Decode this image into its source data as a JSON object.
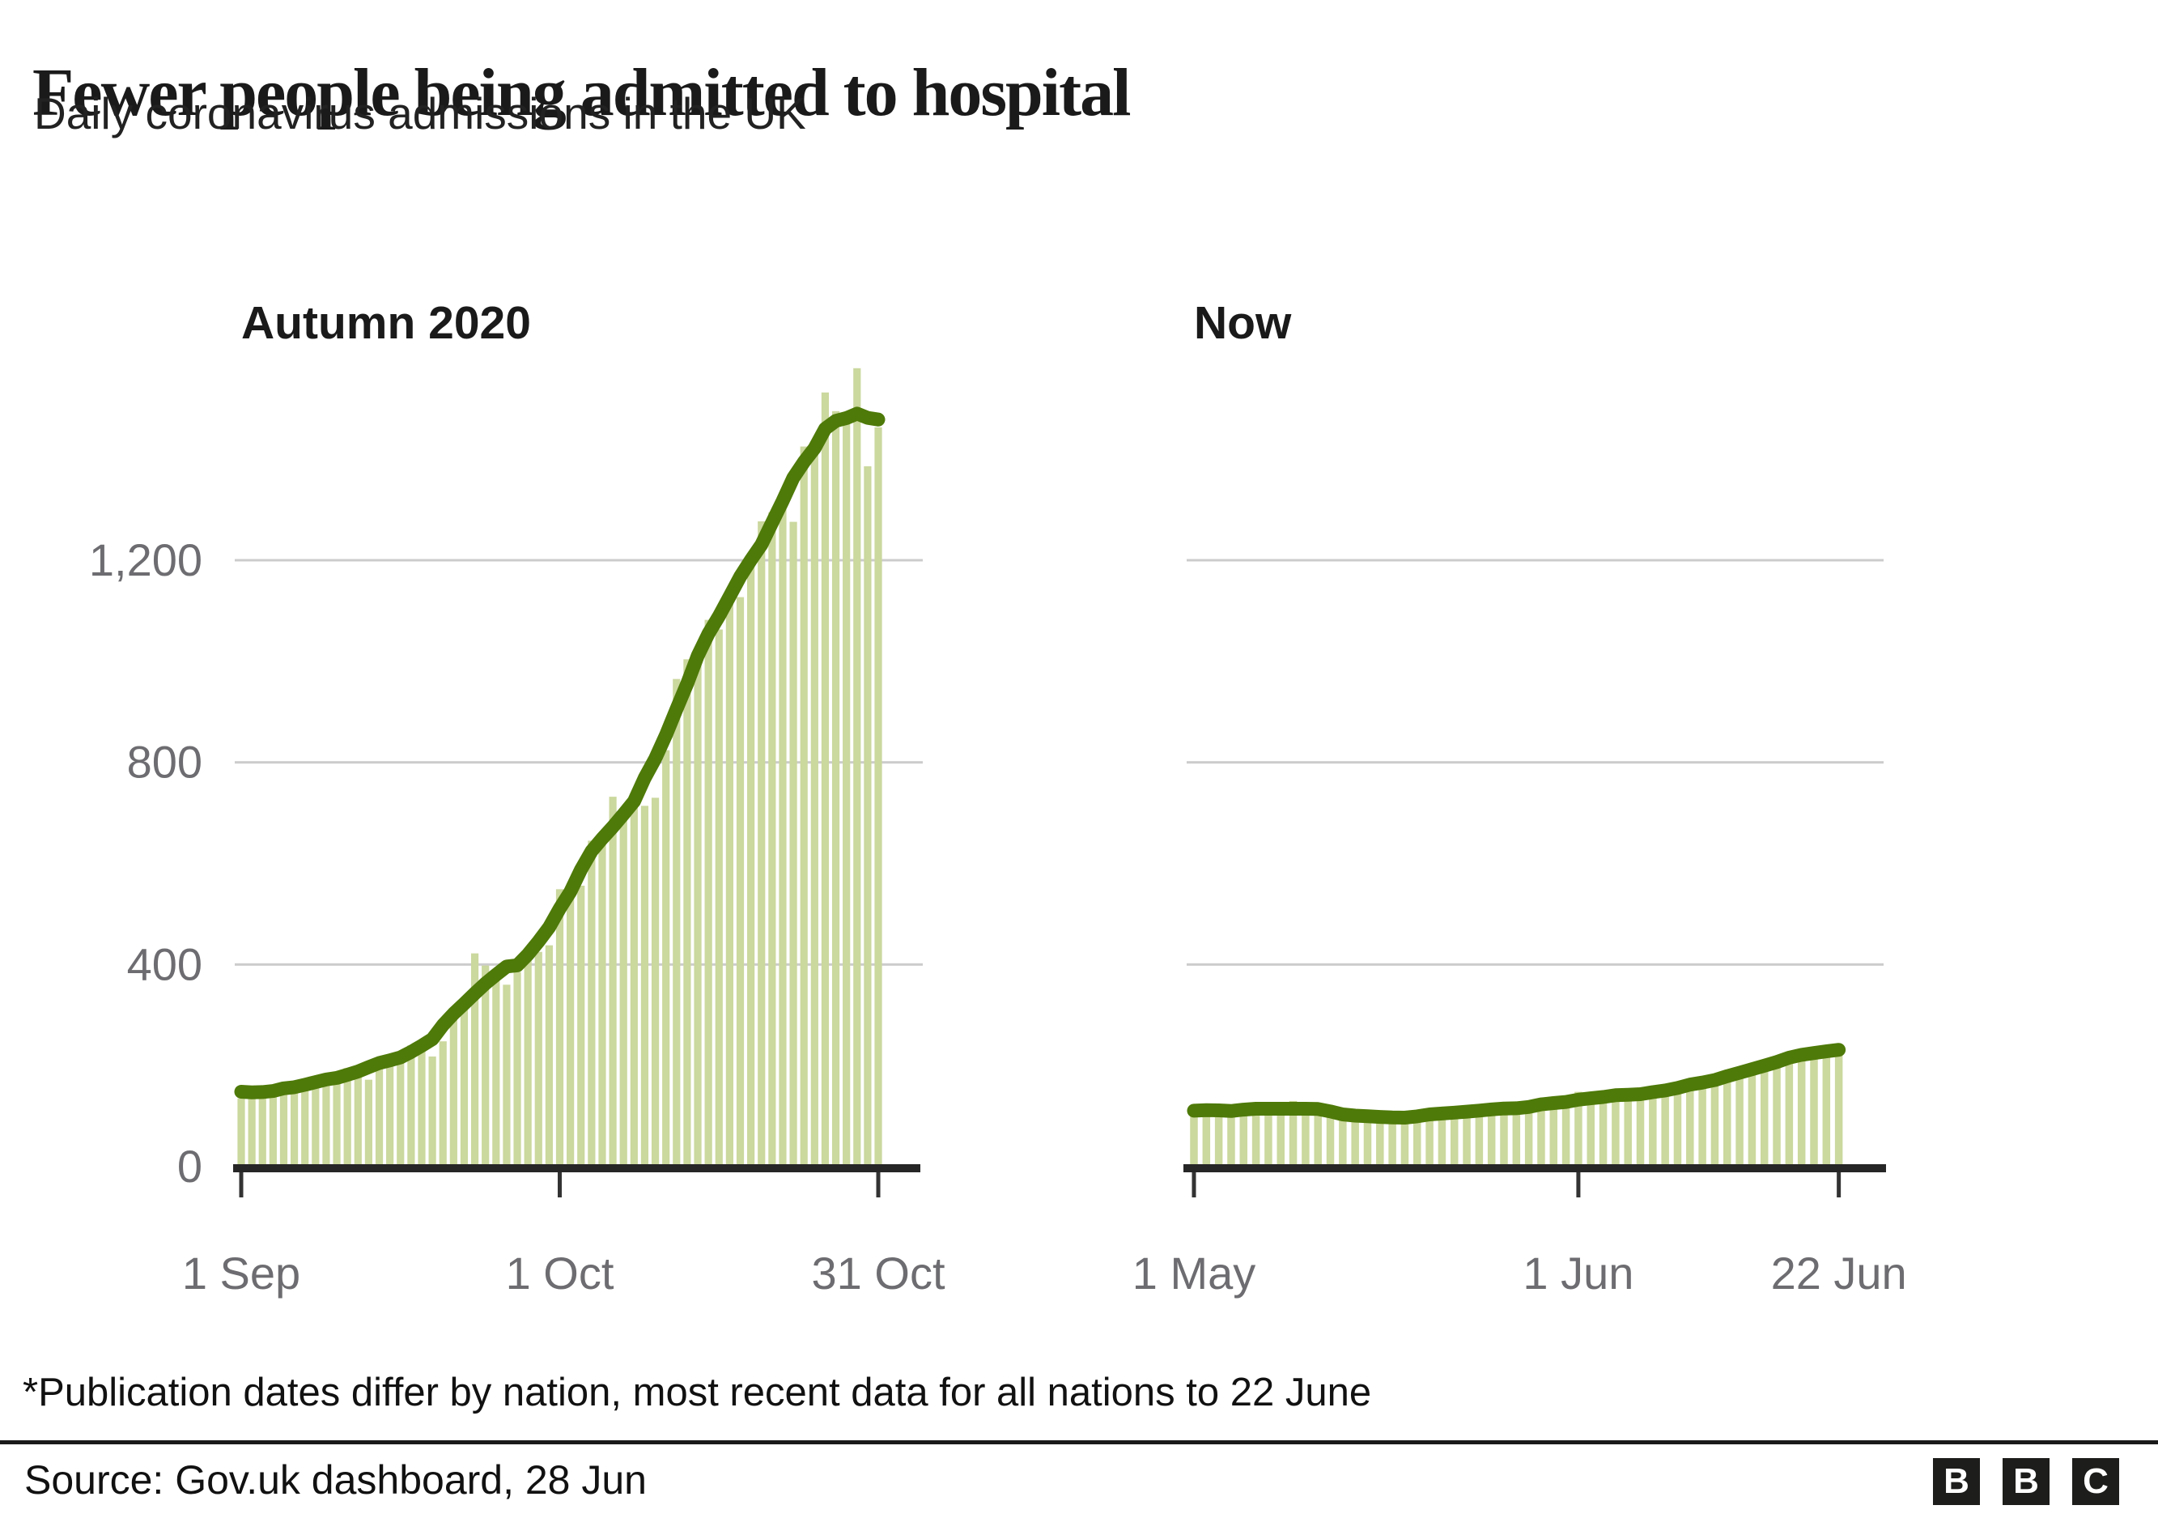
{
  "header": {
    "title": "Fewer people being admitted to hospital",
    "subtitle": "Daily coronavirus admissions in the UK"
  },
  "chart_data": {
    "type": "bar",
    "title": "Daily coronavirus admissions in the UK",
    "ylabel": "",
    "xlabel": "",
    "ylim": [
      0,
      1600
    ],
    "grid": true,
    "y_ticks": [
      0,
      400,
      800,
      1200
    ],
    "y_tick_labels": [
      "0",
      "400",
      "800",
      "1,200"
    ],
    "line_method": "centered 7-day moving average of daily values",
    "colors": {
      "bar": "#cbd89e",
      "line": "#4e7a09",
      "grid": "#cccccc",
      "axis": "#262626",
      "tick": "#333333",
      "tick_label": "#6d6d71"
    },
    "panels": [
      {
        "label": "Autumn 2020",
        "x_ticks": [
          "1 Sep",
          "1 Oct",
          "31 Oct"
        ],
        "x_tick_days": [
          0,
          30,
          60
        ],
        "values": [
          135,
          152,
          148,
          158,
          142,
          150,
          162,
          172,
          168,
          182,
          195,
          178,
          172,
          205,
          218,
          228,
          240,
          232,
          218,
          248,
          290,
          310,
          422,
          398,
          372,
          360,
          385,
          410,
          425,
          438,
          549,
          552,
          556,
          645,
          642,
          732,
          696,
          722,
          714,
          730,
          824,
          965,
          1004,
          1020,
          1082,
          1063,
          1119,
          1127,
          1212,
          1277,
          1295,
          1310,
          1276,
          1425,
          1428,
          1532,
          1495,
          1485,
          1580,
          1386,
          1463
        ]
      },
      {
        "label": "Now",
        "x_ticks": [
          "1 May",
          "1 Jun",
          "22 Jun"
        ],
        "x_tick_days": [
          0,
          31,
          52
        ],
        "values": [
          105,
          118,
          112,
          108,
          115,
          110,
          102,
          125,
          130,
          112,
          108,
          115,
          110,
          98,
          92,
          88,
          95,
          100,
          106,
          102,
          96,
          110,
          114,
          108,
          112,
          120,
          116,
          113,
          122,
          118,
          125,
          148,
          138,
          132,
          145,
          140,
          136,
          150,
          155,
          146,
          160,
          168,
          175,
          182,
          178,
          190,
          200,
          208,
          216,
          225,
          232,
          238,
          230
        ]
      }
    ]
  },
  "footer": {
    "note": "*Publication dates differ by nation, most recent data for all nations to 22 June",
    "source": "Source: Gov.uk dashboard, 28 Jun",
    "logo_letters": [
      "B",
      "B",
      "C"
    ]
  }
}
